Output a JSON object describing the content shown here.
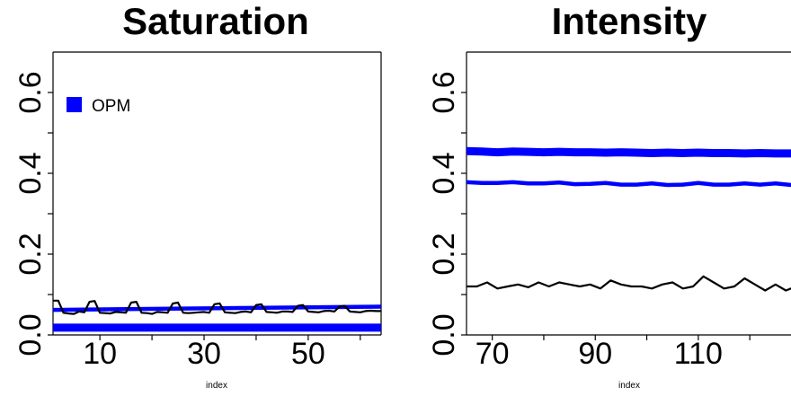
{
  "chart_data": [
    {
      "type": "line",
      "title": "Saturation",
      "xlabel": "index",
      "ylabel": "",
      "xlim": [
        1,
        64
      ],
      "ylim": [
        0,
        0.7
      ],
      "xticks": [
        10,
        30,
        50
      ],
      "yticks": [
        0.0,
        0.2,
        0.4,
        0.6
      ],
      "ytick_labels": [
        "0.0",
        "0.2",
        "0.4",
        "0.6"
      ],
      "legend": {
        "position": "top-left",
        "entries": [
          {
            "name": "OPM",
            "color": "#0000ff"
          }
        ]
      },
      "series": [
        {
          "name": "OPM",
          "color": "#0000ff",
          "width": "thick",
          "x": [
            1,
            64
          ],
          "y": [
            0.018,
            0.018
          ]
        },
        {
          "color": "#0000ff",
          "width": "medium",
          "x": [
            1,
            64
          ],
          "y": [
            0.062,
            0.07
          ]
        },
        {
          "color": "#000000",
          "width": "thin",
          "x": [
            1,
            2,
            3,
            4,
            5,
            6,
            7,
            8,
            9,
            10,
            11,
            12,
            13,
            14,
            15,
            16,
            17,
            18,
            19,
            20,
            21,
            22,
            23,
            24,
            25,
            26,
            27,
            28,
            29,
            30,
            31,
            32,
            33,
            34,
            35,
            36,
            37,
            38,
            39,
            40,
            41,
            42,
            43,
            44,
            45,
            46,
            47,
            48,
            49,
            50,
            51,
            52,
            53,
            54,
            55,
            56,
            57,
            58,
            59,
            60,
            61,
            62,
            63,
            64
          ],
          "y": [
            0.085,
            0.085,
            0.055,
            0.053,
            0.052,
            0.058,
            0.056,
            0.082,
            0.084,
            0.055,
            0.054,
            0.053,
            0.057,
            0.056,
            0.055,
            0.08,
            0.082,
            0.055,
            0.054,
            0.052,
            0.057,
            0.056,
            0.055,
            0.078,
            0.08,
            0.055,
            0.054,
            0.055,
            0.056,
            0.057,
            0.055,
            0.076,
            0.078,
            0.056,
            0.055,
            0.054,
            0.057,
            0.058,
            0.056,
            0.074,
            0.076,
            0.057,
            0.056,
            0.055,
            0.058,
            0.058,
            0.057,
            0.072,
            0.074,
            0.058,
            0.057,
            0.056,
            0.059,
            0.06,
            0.058,
            0.07,
            0.072,
            0.058,
            0.057,
            0.056,
            0.059,
            0.06,
            0.059,
            0.059
          ]
        }
      ]
    },
    {
      "type": "line",
      "title": "Intensity",
      "xlabel": "index",
      "ylabel": "",
      "xlim": [
        65,
        128
      ],
      "ylim": [
        0,
        0.7
      ],
      "xticks": [
        70,
        90,
        110
      ],
      "yticks": [
        0.0,
        0.2,
        0.4,
        0.6
      ],
      "ytick_labels": [
        "0.0",
        "0.2",
        "0.4",
        "0.6"
      ],
      "series": [
        {
          "color": "#0000ff",
          "width": "thick",
          "x": [
            65,
            68,
            71,
            74,
            77,
            80,
            83,
            86,
            89,
            92,
            95,
            98,
            101,
            104,
            107,
            110,
            113,
            116,
            119,
            122,
            125,
            128
          ],
          "y": [
            0.455,
            0.454,
            0.452,
            0.454,
            0.453,
            0.452,
            0.453,
            0.452,
            0.452,
            0.451,
            0.452,
            0.451,
            0.45,
            0.451,
            0.45,
            0.451,
            0.45,
            0.45,
            0.449,
            0.45,
            0.449,
            0.449
          ]
        },
        {
          "color": "#0000ff",
          "width": "medium",
          "x": [
            65,
            68,
            71,
            74,
            77,
            80,
            83,
            86,
            89,
            92,
            95,
            98,
            101,
            104,
            107,
            110,
            113,
            116,
            119,
            122,
            125,
            128
          ],
          "y": [
            0.378,
            0.376,
            0.376,
            0.378,
            0.375,
            0.375,
            0.377,
            0.373,
            0.374,
            0.376,
            0.372,
            0.372,
            0.375,
            0.371,
            0.372,
            0.376,
            0.372,
            0.372,
            0.375,
            0.372,
            0.375,
            0.371
          ]
        },
        {
          "color": "#000000",
          "width": "thin",
          "x": [
            65,
            67,
            69,
            71,
            73,
            75,
            77,
            79,
            81,
            83,
            85,
            87,
            89,
            91,
            93,
            95,
            97,
            99,
            101,
            103,
            105,
            107,
            109,
            111,
            113,
            115,
            117,
            119,
            121,
            123,
            125,
            127,
            128
          ],
          "y": [
            0.12,
            0.12,
            0.13,
            0.115,
            0.12,
            0.125,
            0.118,
            0.13,
            0.12,
            0.13,
            0.125,
            0.12,
            0.125,
            0.115,
            0.135,
            0.125,
            0.12,
            0.12,
            0.115,
            0.125,
            0.13,
            0.115,
            0.12,
            0.145,
            0.13,
            0.115,
            0.12,
            0.14,
            0.125,
            0.11,
            0.125,
            0.11,
            0.115
          ]
        }
      ]
    }
  ]
}
